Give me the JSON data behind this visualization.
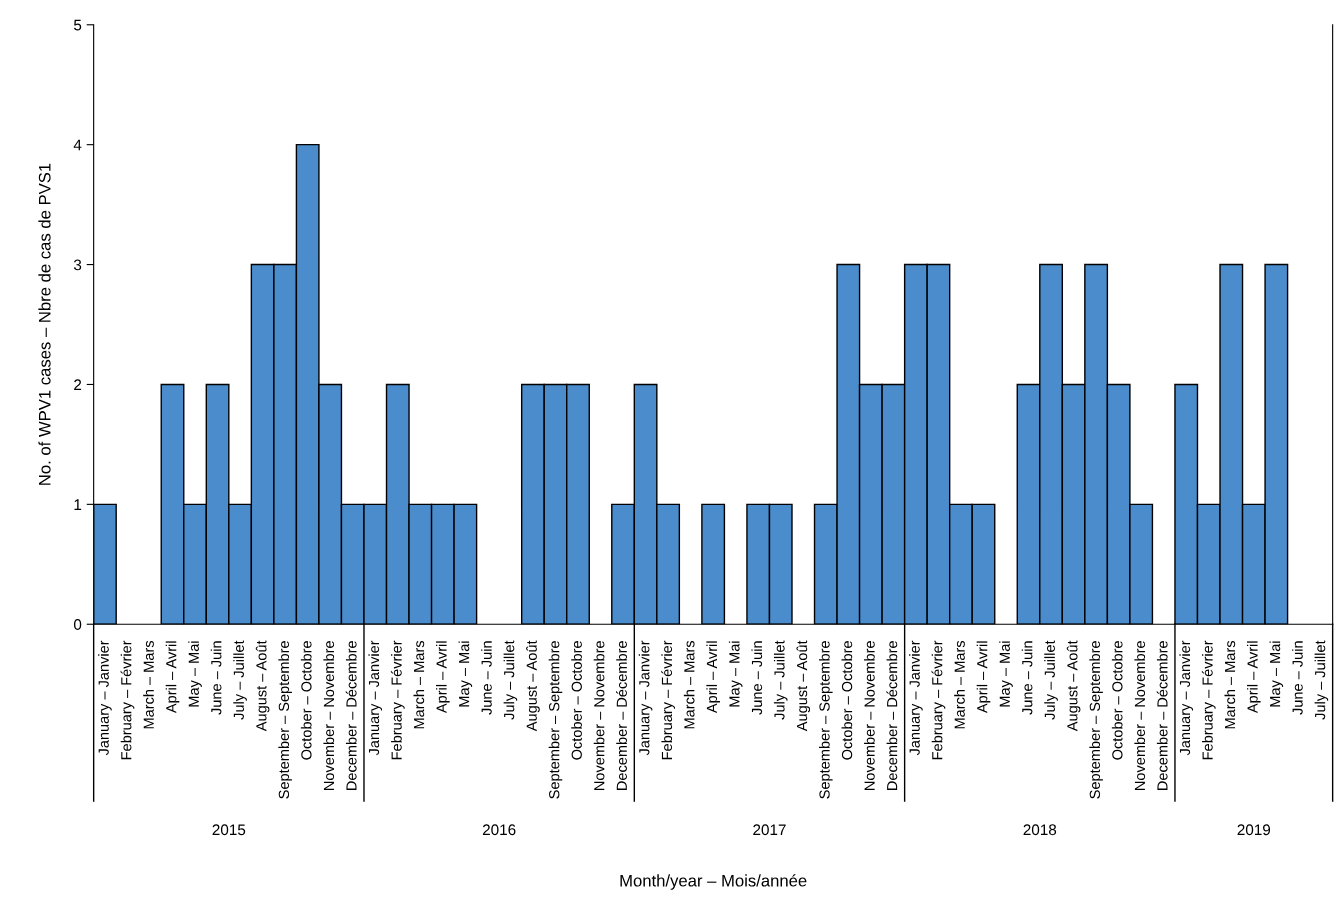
{
  "chart_data": {
    "type": "bar",
    "xlabel": "Month/year – Mois/année",
    "ylabel": "No. of WPV1 cases – Nbre de cas de PVS1",
    "categories": [
      "January – Janvier",
      "February – Février",
      "March – Mars",
      "April – Avril",
      "May – Mai",
      "June – Juin",
      "July – Juillet",
      "August – Août",
      "September – Septembre",
      "October – Octobre",
      "November – Novembre",
      "December – Décembre",
      "January – Janvier",
      "February – Février",
      "March – Mars",
      "April – Avril",
      "May – Mai",
      "June – Juin",
      "July – Juillet",
      "August – Août",
      "September – Septembre",
      "October – Octobre",
      "November – Novembre",
      "December – Décembre",
      "January – Janvier",
      "February – Février",
      "March – Mars",
      "April – Avril",
      "May – Mai",
      "June – Juin",
      "July – Juillet",
      "August – Août",
      "September – Septembre",
      "October – Octobre",
      "November – Novembre",
      "December – Décembre",
      "January – Janvier",
      "February – Février",
      "March – Mars",
      "April – Avril",
      "May – Mai",
      "June – Juin",
      "July – Juillet",
      "August – Août",
      "September – Septembre",
      "October – Octobre",
      "November – Novembre",
      "December – Décembre",
      "January – Janvier",
      "February – Février",
      "March – Mars",
      "April – Avril",
      "May – Mai",
      "June – Juin",
      "July – Juillet"
    ],
    "values": [
      1,
      0,
      0,
      2,
      1,
      2,
      1,
      3,
      3,
      4,
      2,
      1,
      1,
      2,
      1,
      1,
      1,
      0,
      0,
      2,
      2,
      2,
      0,
      1,
      2,
      1,
      0,
      1,
      0,
      1,
      1,
      0,
      1,
      3,
      2,
      2,
      3,
      3,
      1,
      1,
      0,
      2,
      3,
      2,
      3,
      2,
      1,
      0,
      2,
      1,
      3,
      1,
      3,
      0,
      0
    ],
    "color": "#4a8ccc",
    "ylim": [
      0,
      5
    ],
    "yticks": [
      0,
      1,
      2,
      3,
      4,
      5
    ],
    "annotations": [
      "2015",
      "2016",
      "2017",
      "2018",
      "2019"
    ]
  }
}
